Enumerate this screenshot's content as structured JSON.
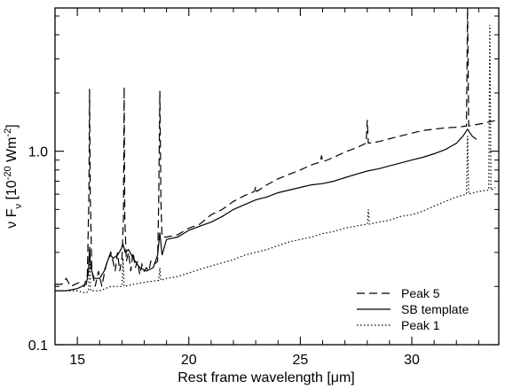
{
  "chart_data": {
    "type": "line",
    "title": "",
    "xlabel": "Rest frame wavelength [μm]",
    "ylabel": {
      "parts": [
        {
          "text": "ν F",
          "style": "normal"
        },
        {
          "text": "ν",
          "style": "sub"
        },
        {
          "text": "  [10",
          "style": "normal"
        },
        {
          "text": "-20",
          "style": "sup"
        },
        {
          "text": " Wm",
          "style": "normal"
        },
        {
          "text": "-2",
          "style": "sup"
        },
        {
          "text": "]",
          "style": "normal"
        }
      ]
    },
    "x_scale": "linear",
    "y_scale": "log",
    "xlim": [
      14.0,
      33.9
    ],
    "ylim": [
      0.1,
      5.5
    ],
    "xticks": [
      {
        "value": 15,
        "label": "15"
      },
      {
        "value": 20,
        "label": "20"
      },
      {
        "value": 25,
        "label": "25"
      },
      {
        "value": 30,
        "label": "30"
      }
    ],
    "yticks": [
      {
        "value": 0.1,
        "label": "0.1"
      },
      {
        "value": 1.0,
        "label": "1.0"
      }
    ],
    "legend": {
      "position": "bottom-right",
      "entries": [
        {
          "label": "Peak 5",
          "dash": "dashed"
        },
        {
          "label": "SB template",
          "dash": "solid"
        },
        {
          "label": "Peak 1",
          "dash": "dotted"
        }
      ]
    },
    "series": [
      {
        "name": "Peak 5",
        "dash": "dashed",
        "points": [
          [
            14.0,
            0.205
          ],
          [
            14.3,
            0.205
          ],
          [
            14.5,
            0.22
          ],
          [
            14.7,
            0.2
          ],
          [
            14.9,
            0.205
          ],
          [
            15.1,
            0.21
          ],
          [
            15.3,
            0.2
          ],
          [
            15.45,
            0.23
          ],
          [
            15.52,
            0.6
          ],
          [
            15.55,
            2.1
          ],
          [
            15.58,
            0.6
          ],
          [
            15.65,
            0.24
          ],
          [
            15.8,
            0.2
          ],
          [
            15.95,
            0.24
          ],
          [
            16.1,
            0.2
          ],
          [
            16.2,
            0.23
          ],
          [
            16.3,
            0.26
          ],
          [
            16.4,
            0.28
          ],
          [
            16.5,
            0.3
          ],
          [
            16.6,
            0.27
          ],
          [
            16.7,
            0.24
          ],
          [
            16.8,
            0.3
          ],
          [
            16.9,
            0.24
          ],
          [
            17.0,
            0.28
          ],
          [
            17.07,
            0.45
          ],
          [
            17.1,
            2.15
          ],
          [
            17.13,
            0.45
          ],
          [
            17.2,
            0.27
          ],
          [
            17.3,
            0.3
          ],
          [
            17.4,
            0.24
          ],
          [
            17.5,
            0.3
          ],
          [
            17.6,
            0.25
          ],
          [
            17.7,
            0.27
          ],
          [
            17.8,
            0.23
          ],
          [
            17.9,
            0.26
          ],
          [
            18.0,
            0.24
          ],
          [
            18.1,
            0.25
          ],
          [
            18.2,
            0.24
          ],
          [
            18.3,
            0.27
          ],
          [
            18.45,
            0.26
          ],
          [
            18.6,
            0.27
          ],
          [
            18.65,
            0.55
          ],
          [
            18.7,
            2.05
          ],
          [
            18.75,
            0.55
          ],
          [
            18.8,
            0.36
          ],
          [
            19.0,
            0.36
          ],
          [
            19.5,
            0.37
          ],
          [
            20.0,
            0.4
          ],
          [
            20.5,
            0.42
          ],
          [
            21.0,
            0.47
          ],
          [
            21.5,
            0.5
          ],
          [
            22.0,
            0.55
          ],
          [
            22.5,
            0.59
          ],
          [
            22.95,
            0.62
          ],
          [
            23.0,
            0.66
          ],
          [
            23.05,
            0.62
          ],
          [
            23.5,
            0.67
          ],
          [
            24.0,
            0.72
          ],
          [
            24.5,
            0.76
          ],
          [
            25.0,
            0.8
          ],
          [
            25.5,
            0.85
          ],
          [
            25.9,
            0.88
          ],
          [
            25.95,
            0.95
          ],
          [
            26.0,
            0.88
          ],
          [
            26.5,
            0.93
          ],
          [
            27.0,
            0.99
          ],
          [
            27.5,
            1.04
          ],
          [
            27.95,
            1.1
          ],
          [
            28.0,
            1.45
          ],
          [
            28.05,
            1.1
          ],
          [
            28.5,
            1.12
          ],
          [
            29.0,
            1.16
          ],
          [
            29.5,
            1.2
          ],
          [
            30.0,
            1.24
          ],
          [
            30.5,
            1.28
          ],
          [
            31.0,
            1.3
          ],
          [
            31.5,
            1.32
          ],
          [
            32.0,
            1.33
          ],
          [
            32.45,
            1.35
          ],
          [
            32.5,
            5.5
          ],
          [
            32.55,
            1.35
          ],
          [
            33.0,
            1.38
          ],
          [
            33.3,
            1.4
          ],
          [
            33.5,
            1.42
          ],
          [
            33.75,
            1.44
          ]
        ]
      },
      {
        "name": "SB template",
        "dash": "solid",
        "points": [
          [
            14.0,
            0.19
          ],
          [
            14.5,
            0.19
          ],
          [
            15.0,
            0.195
          ],
          [
            15.4,
            0.205
          ],
          [
            15.5,
            0.24
          ],
          [
            15.55,
            0.32
          ],
          [
            15.6,
            0.25
          ],
          [
            15.75,
            0.22
          ],
          [
            16.0,
            0.22
          ],
          [
            16.2,
            0.24
          ],
          [
            16.4,
            0.28
          ],
          [
            16.5,
            0.29
          ],
          [
            16.6,
            0.28
          ],
          [
            16.8,
            0.29
          ],
          [
            16.95,
            0.31
          ],
          [
            17.05,
            0.33
          ],
          [
            17.15,
            0.3
          ],
          [
            17.3,
            0.31
          ],
          [
            17.5,
            0.28
          ],
          [
            17.8,
            0.25
          ],
          [
            18.1,
            0.24
          ],
          [
            18.4,
            0.25
          ],
          [
            18.6,
            0.29
          ],
          [
            18.7,
            0.38
          ],
          [
            18.8,
            0.29
          ],
          [
            19.0,
            0.35
          ],
          [
            19.5,
            0.36
          ],
          [
            20.0,
            0.39
          ],
          [
            20.5,
            0.41
          ],
          [
            21.0,
            0.43
          ],
          [
            21.5,
            0.46
          ],
          [
            22.0,
            0.5
          ],
          [
            22.5,
            0.53
          ],
          [
            23.0,
            0.56
          ],
          [
            23.5,
            0.58
          ],
          [
            24.0,
            0.61
          ],
          [
            24.5,
            0.63
          ],
          [
            25.0,
            0.65
          ],
          [
            25.5,
            0.67
          ],
          [
            26.0,
            0.68
          ],
          [
            26.5,
            0.7
          ],
          [
            27.0,
            0.73
          ],
          [
            27.5,
            0.76
          ],
          [
            28.0,
            0.79
          ],
          [
            28.5,
            0.81
          ],
          [
            29.0,
            0.84
          ],
          [
            29.5,
            0.87
          ],
          [
            30.0,
            0.9
          ],
          [
            30.5,
            0.93
          ],
          [
            31.0,
            0.97
          ],
          [
            31.5,
            1.02
          ],
          [
            32.0,
            1.1
          ],
          [
            32.3,
            1.2
          ],
          [
            32.5,
            1.3
          ],
          [
            32.7,
            1.2
          ],
          [
            32.9,
            1.15
          ]
        ]
      },
      {
        "name": "Peak 1",
        "dash": "dotted",
        "points": [
          [
            14.0,
            0.19
          ],
          [
            14.5,
            0.19
          ],
          [
            15.0,
            0.19
          ],
          [
            15.4,
            0.185
          ],
          [
            15.5,
            0.19
          ],
          [
            15.55,
            0.32
          ],
          [
            15.6,
            0.19
          ],
          [
            16.0,
            0.19
          ],
          [
            16.5,
            0.2
          ],
          [
            17.0,
            0.2
          ],
          [
            17.05,
            0.28
          ],
          [
            17.1,
            0.2
          ],
          [
            17.5,
            0.205
          ],
          [
            18.0,
            0.21
          ],
          [
            18.65,
            0.215
          ],
          [
            18.7,
            0.25
          ],
          [
            18.75,
            0.215
          ],
          [
            19.0,
            0.22
          ],
          [
            19.5,
            0.225
          ],
          [
            20.0,
            0.235
          ],
          [
            20.5,
            0.245
          ],
          [
            21.0,
            0.255
          ],
          [
            21.5,
            0.265
          ],
          [
            22.0,
            0.275
          ],
          [
            22.5,
            0.29
          ],
          [
            23.0,
            0.3
          ],
          [
            23.5,
            0.31
          ],
          [
            24.0,
            0.325
          ],
          [
            24.5,
            0.34
          ],
          [
            25.0,
            0.35
          ],
          [
            25.5,
            0.36
          ],
          [
            26.0,
            0.375
          ],
          [
            26.5,
            0.385
          ],
          [
            27.0,
            0.4
          ],
          [
            27.5,
            0.41
          ],
          [
            28.0,
            0.42
          ],
          [
            28.05,
            0.5
          ],
          [
            28.1,
            0.42
          ],
          [
            28.5,
            0.43
          ],
          [
            29.0,
            0.44
          ],
          [
            29.5,
            0.46
          ],
          [
            30.0,
            0.47
          ],
          [
            30.5,
            0.49
          ],
          [
            31.0,
            0.52
          ],
          [
            31.5,
            0.55
          ],
          [
            32.0,
            0.58
          ],
          [
            32.45,
            0.6
          ],
          [
            32.5,
            1.2
          ],
          [
            32.55,
            0.6
          ],
          [
            33.0,
            0.62
          ],
          [
            33.45,
            0.63
          ],
          [
            33.5,
            4.5
          ],
          [
            33.55,
            0.63
          ],
          [
            33.75,
            0.65
          ]
        ]
      }
    ]
  }
}
